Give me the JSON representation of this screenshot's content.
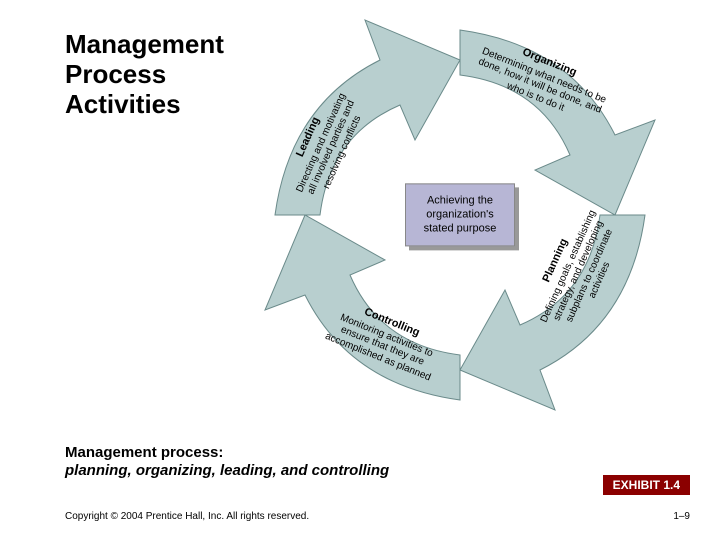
{
  "title": "Management\nProcess\nActivities",
  "center_box": "Achieving the organization's stated purpose",
  "arrows": {
    "organizing": {
      "heading": "Organizing",
      "body": "Determining what needs to be done, how it will be done, and who is to do it"
    },
    "planning": {
      "heading": "Planning",
      "body": "Defining goals, establishing strategy, and developing subplans to coordinate activities"
    },
    "controlling": {
      "heading": "Controlling",
      "body": "Monitoring activities to ensure that they are accomplished as planned"
    },
    "leading": {
      "heading": "Leading",
      "body": "Directing and motivating all involved parties and resolving conflicts"
    }
  },
  "process_note": {
    "heading": "Management process:",
    "body": "planning, organizing, leading, and controlling"
  },
  "exhibit_label": "EXHIBIT 1.4",
  "copyright": "Copyright © 2004 Prentice Hall, Inc. All rights reserved.",
  "page_number": "1–9",
  "colors": {
    "arrow_fill": "#b8cfcf",
    "arrow_stroke": "#6a8a8a",
    "center_fill": "#b7b6d5",
    "exhibit_bg": "#8b0000"
  }
}
